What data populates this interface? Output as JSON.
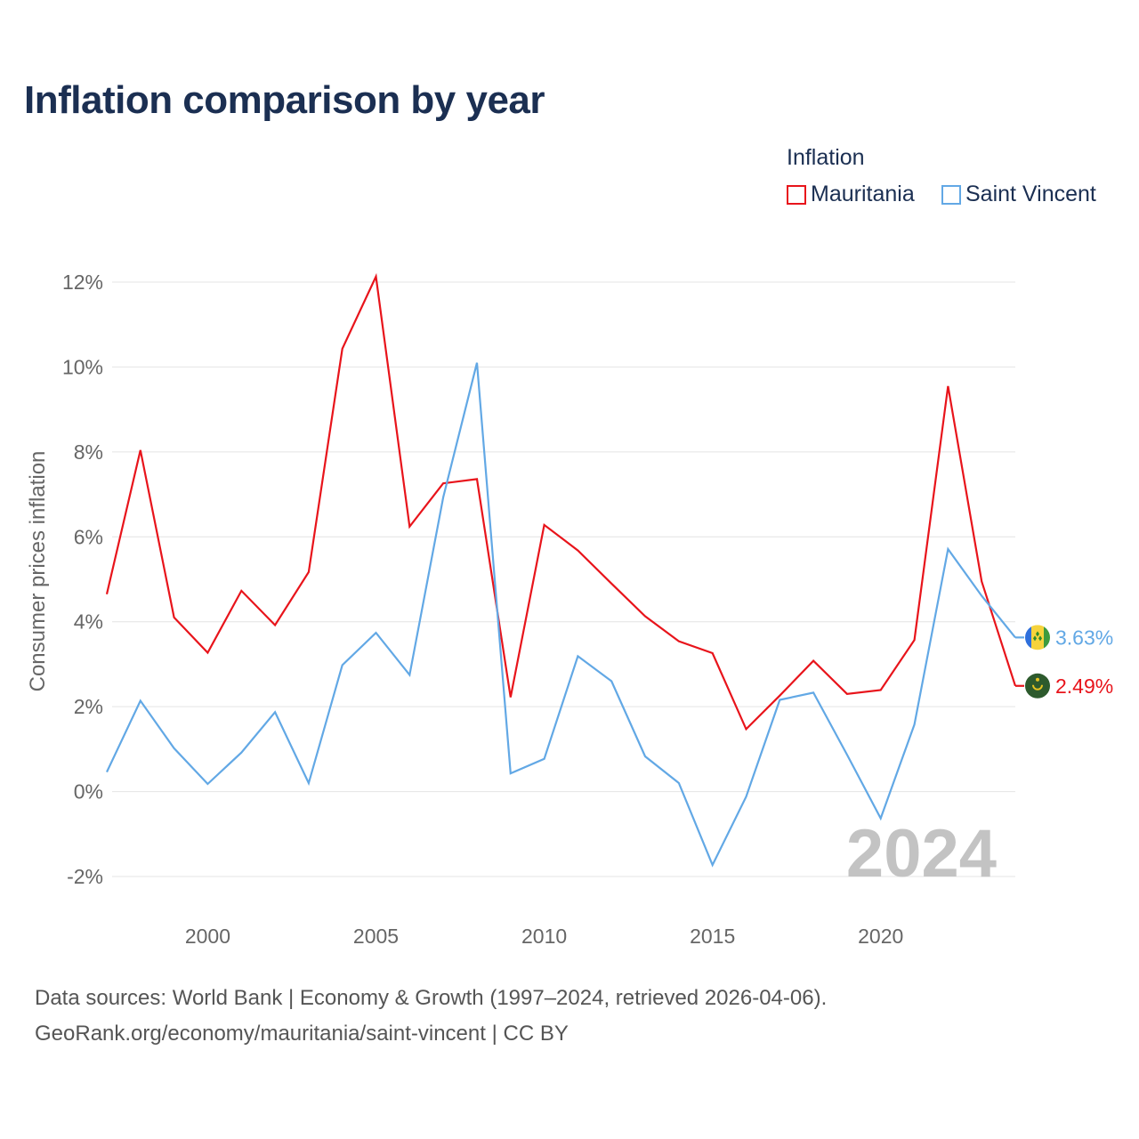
{
  "title": "Inflation comparison by year",
  "legend": {
    "title": "Inflation",
    "items": [
      {
        "name": "Mauritania",
        "color": "#e8141b"
      },
      {
        "name": "Saint Vincent",
        "color": "#62a8e5"
      }
    ]
  },
  "footer": {
    "line1": "Data sources: World Bank | Economy & Growth (1997–2024, retrieved 2026-04-06).",
    "line2": "GeoRank.org/economy/mauritania/saint-vincent | CC BY"
  },
  "chart_data": {
    "type": "line",
    "title": "Inflation comparison by year",
    "xlabel": "",
    "ylabel": "Consumer prices inflation",
    "x": [
      1997,
      1998,
      1999,
      2000,
      2001,
      2002,
      2003,
      2004,
      2005,
      2006,
      2007,
      2008,
      2009,
      2010,
      2011,
      2012,
      2013,
      2014,
      2015,
      2016,
      2017,
      2018,
      2019,
      2020,
      2021,
      2022,
      2023,
      2024
    ],
    "xticks": [
      2000,
      2005,
      2010,
      2015,
      2020
    ],
    "xtick_labels": [
      "2000",
      "2005",
      "2010",
      "2015",
      "2020"
    ],
    "xlim": [
      1997,
      2024
    ],
    "yticks": [
      -2,
      0,
      2,
      4,
      6,
      8,
      10,
      12
    ],
    "ytick_labels": [
      "-2%",
      "0%",
      "2%",
      "4%",
      "6%",
      "8%",
      "10%",
      "12%"
    ],
    "ylim": [
      -2,
      12
    ],
    "grid": true,
    "watermark": "2024",
    "series": [
      {
        "name": "Mauritania",
        "color": "#e8141b",
        "values": [
          4.65,
          8.04,
          4.1,
          3.27,
          4.73,
          3.92,
          5.17,
          10.43,
          12.13,
          6.24,
          7.26,
          7.36,
          2.22,
          6.28,
          5.68,
          4.9,
          4.13,
          3.54,
          3.26,
          1.47,
          2.26,
          3.08,
          2.3,
          2.39,
          3.57,
          9.55,
          4.95,
          2.49
        ],
        "end_label": "2.49%"
      },
      {
        "name": "Saint Vincent",
        "color": "#62a8e5",
        "values": [
          0.46,
          2.14,
          1.02,
          0.18,
          0.92,
          1.87,
          0.2,
          2.98,
          3.74,
          2.75,
          6.93,
          10.1,
          0.43,
          0.77,
          3.19,
          2.6,
          0.83,
          0.2,
          -1.73,
          -0.12,
          2.16,
          2.33,
          0.87,
          -0.63,
          1.58,
          5.71,
          4.61,
          3.63
        ],
        "end_label": "3.63%"
      }
    ]
  }
}
